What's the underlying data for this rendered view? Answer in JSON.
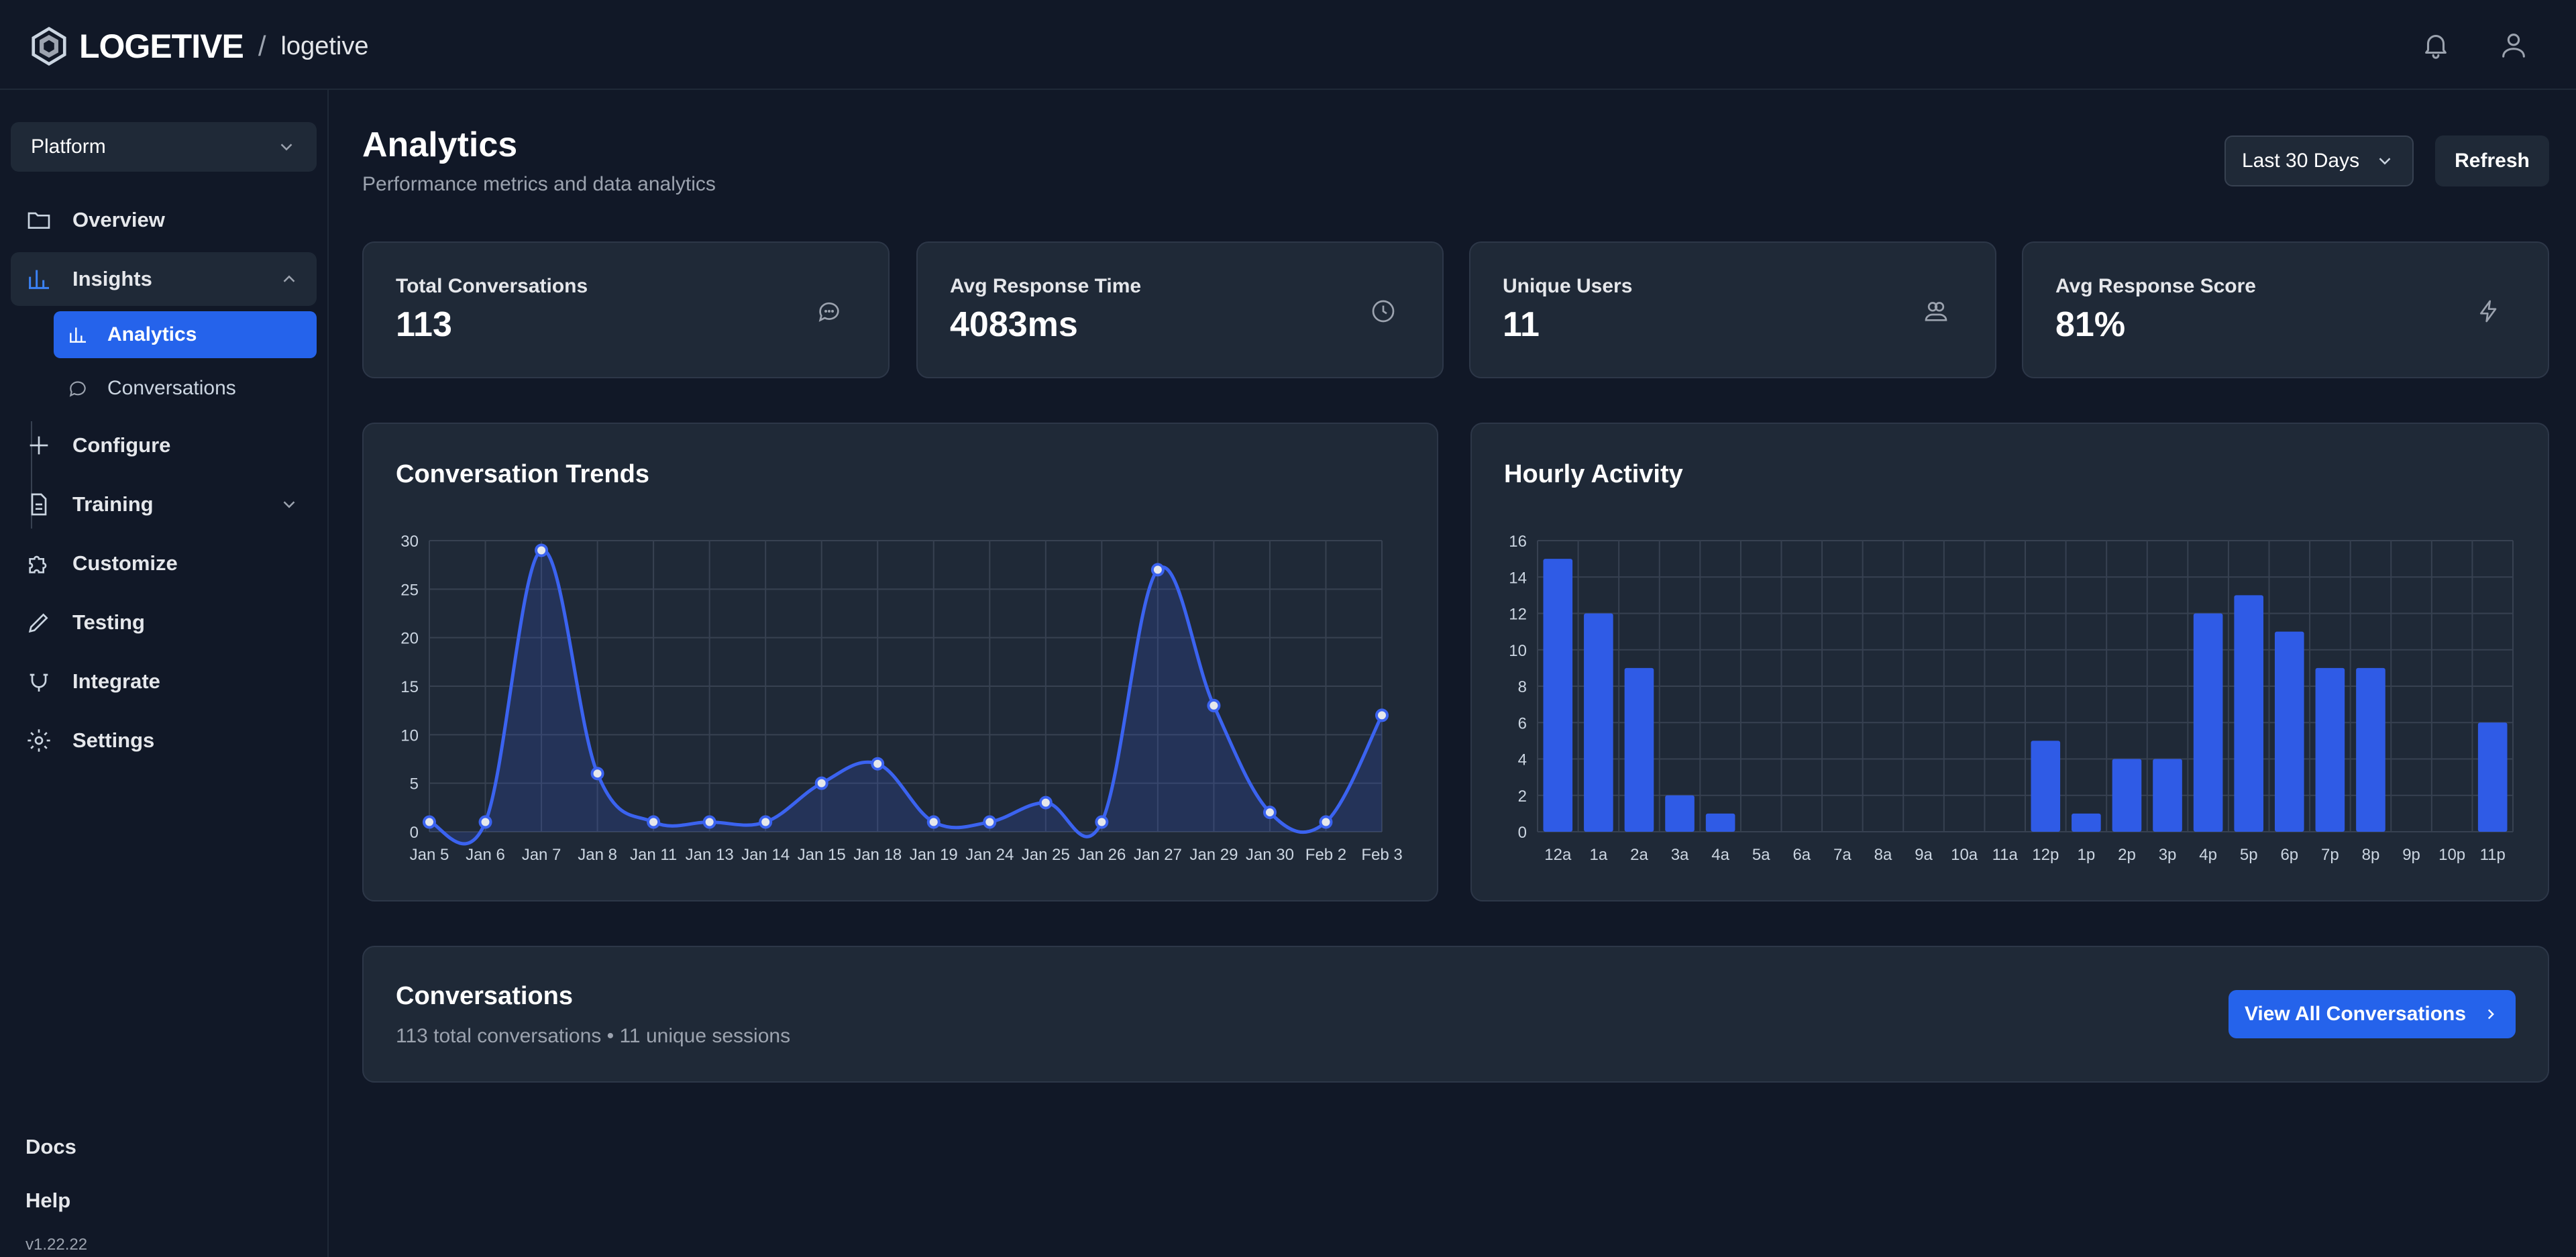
{
  "header": {
    "brand": "LOGETIVE",
    "separator": "/",
    "org": "logetive"
  },
  "sidebar": {
    "platform": "Platform",
    "items": [
      {
        "label": "Overview",
        "icon": "folder-icon"
      },
      {
        "label": "Insights",
        "icon": "bar-chart-icon"
      },
      {
        "label": "Configure",
        "icon": "plus-icon"
      },
      {
        "label": "Training",
        "icon": "document-icon"
      },
      {
        "label": "Customize",
        "icon": "puzzle-icon"
      },
      {
        "label": "Testing",
        "icon": "pencil-icon"
      },
      {
        "label": "Integrate",
        "icon": "plug-icon"
      },
      {
        "label": "Settings",
        "icon": "gear-icon"
      }
    ],
    "subitems": [
      {
        "label": "Analytics",
        "icon": "bar-chart-icon"
      },
      {
        "label": "Conversations",
        "icon": "chat-icon"
      }
    ],
    "docs": "Docs",
    "help": "Help",
    "version": "v1.22.22"
  },
  "page": {
    "title": "Analytics",
    "subtitle": "Performance metrics and data analytics",
    "range": "Last 30 Days",
    "refresh": "Refresh"
  },
  "stats": [
    {
      "label": "Total Conversations",
      "value": "113",
      "icon": "chat-icon"
    },
    {
      "label": "Avg Response Time",
      "value": "4083ms",
      "icon": "clock-icon"
    },
    {
      "label": "Unique Users",
      "value": "11",
      "icon": "users-icon"
    },
    {
      "label": "Avg Response Score",
      "value": "81%",
      "icon": "lightning-icon"
    }
  ],
  "chart_data": [
    {
      "type": "line",
      "title": "Conversation Trends",
      "x": [
        "Jan 5",
        "Jan 6",
        "Jan 7",
        "Jan 8",
        "Jan 11",
        "Jan 13",
        "Jan 14",
        "Jan 15",
        "Jan 18",
        "Jan 19",
        "Jan 24",
        "Jan 25",
        "Jan 26",
        "Jan 27",
        "Jan 29",
        "Jan 30",
        "Feb 2",
        "Feb 3"
      ],
      "values": [
        1,
        1,
        29,
        6,
        1,
        1,
        1,
        5,
        7,
        1,
        1,
        3,
        1,
        27,
        13,
        2,
        1,
        12
      ],
      "ylim": [
        0,
        30
      ],
      "yticks": [
        0,
        5,
        10,
        15,
        20,
        25,
        30
      ],
      "grid": true,
      "color": "#3b63f0"
    },
    {
      "type": "bar",
      "title": "Hourly Activity",
      "categories": [
        "12a",
        "1a",
        "2a",
        "3a",
        "4a",
        "5a",
        "6a",
        "7a",
        "8a",
        "9a",
        "10a",
        "11a",
        "12p",
        "1p",
        "2p",
        "3p",
        "4p",
        "5p",
        "6p",
        "7p",
        "8p",
        "9p",
        "10p",
        "11p"
      ],
      "values": [
        15,
        12,
        9,
        2,
        1,
        0,
        0,
        0,
        0,
        0,
        0,
        0,
        5,
        1,
        4,
        4,
        12,
        13,
        11,
        9,
        9,
        0,
        0,
        6
      ],
      "ylim": [
        0,
        16
      ],
      "yticks": [
        0,
        2,
        4,
        6,
        8,
        10,
        12,
        14,
        16
      ],
      "grid": true,
      "color": "#2f5be6"
    }
  ],
  "conversations": {
    "title": "Conversations",
    "summary": "113 total conversations • 11 unique sessions",
    "button": "View All Conversations"
  }
}
